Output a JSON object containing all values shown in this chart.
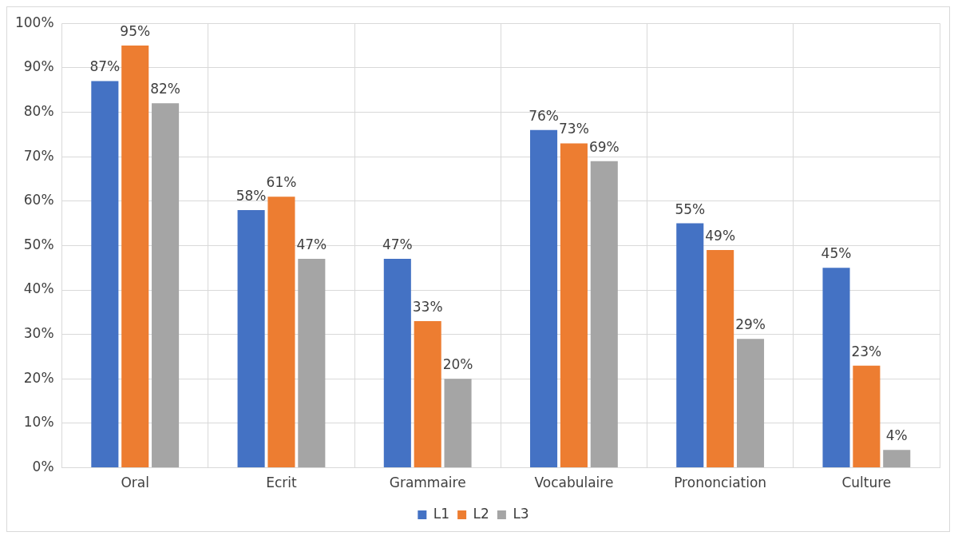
{
  "chart_data": {
    "type": "bar",
    "categories": [
      "Oral",
      "Ecrit",
      "Grammaire",
      "Vocabulaire",
      "Prononciation",
      "Culture"
    ],
    "series": [
      {
        "name": "L1",
        "color": "#4472c4",
        "values": [
          87,
          58,
          47,
          76,
          55,
          45
        ],
        "value_labels": [
          "87%",
          "58%",
          "47%",
          "76%",
          "55%",
          "45%"
        ]
      },
      {
        "name": "L2",
        "color": "#ed7d31",
        "values": [
          95,
          61,
          33,
          73,
          49,
          23
        ],
        "value_labels": [
          "95%",
          "61%",
          "33%",
          "73%",
          "49%",
          "23%"
        ]
      },
      {
        "name": "L3",
        "color": "#a5a5a5",
        "values": [
          82,
          47,
          20,
          69,
          29,
          4
        ],
        "value_labels": [
          "82%",
          "47%",
          "20%",
          "69%",
          "29%",
          "4%"
        ]
      }
    ],
    "ylim": [
      0,
      100
    ],
    "yticks": [
      {
        "value": 0,
        "label": "0%"
      },
      {
        "value": 10,
        "label": "10%"
      },
      {
        "value": 20,
        "label": "20%"
      },
      {
        "value": 30,
        "label": "30%"
      },
      {
        "value": 40,
        "label": "40%"
      },
      {
        "value": 50,
        "label": "50%"
      },
      {
        "value": 60,
        "label": "60%"
      },
      {
        "value": 70,
        "label": "70%"
      },
      {
        "value": 80,
        "label": "80%"
      },
      {
        "value": 90,
        "label": "90%"
      },
      {
        "value": 100,
        "label": "100%"
      }
    ],
    "grid": true,
    "legend": "bottom"
  }
}
